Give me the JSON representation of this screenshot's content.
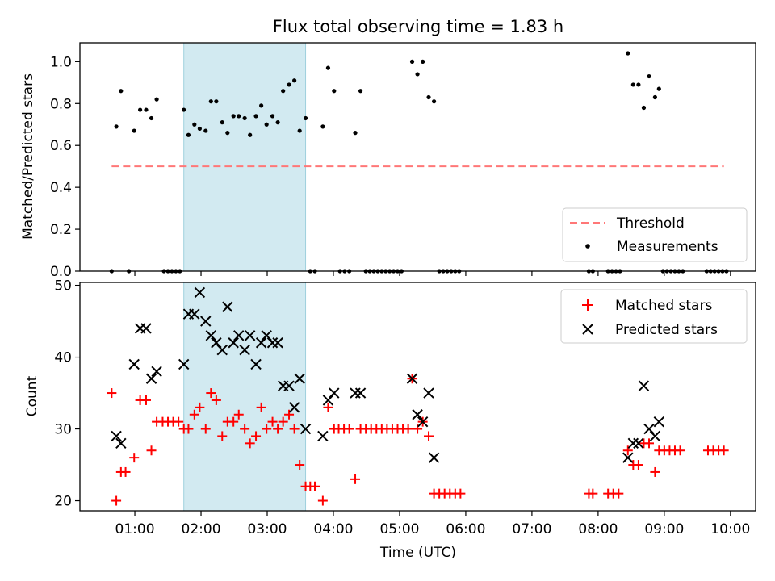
{
  "chart_data": [
    {
      "type": "scatter",
      "panel": "top",
      "title": "Flux total observing time = 1.83 h",
      "xlabel": "",
      "ylabel": "Matched/Predicted stars",
      "xlim": [
        0.17,
        10.38
      ],
      "ylim": [
        0,
        1.09
      ],
      "yticks": [
        0.0,
        0.2,
        0.4,
        0.6,
        0.8,
        1.0
      ],
      "ytick_labels": [
        "0.0",
        "0.2",
        "0.4",
        "0.6",
        "0.8",
        "1.0"
      ],
      "shaded_region": [
        1.74,
        3.58
      ],
      "threshold": {
        "name": "Threshold",
        "value": 0.5,
        "x_range": [
          0.65,
          9.9
        ],
        "color": "#ff7777"
      },
      "legend": {
        "position": "lower-right",
        "entries": [
          "Threshold",
          "Measurements"
        ]
      },
      "series": [
        {
          "name": "Measurements",
          "color": "#000000",
          "marker": "dot",
          "points": [
            [
              0.65,
              0.0
            ],
            [
              0.72,
              0.69
            ],
            [
              0.79,
              0.86
            ],
            [
              0.91,
              0.0
            ],
            [
              0.99,
              0.67
            ],
            [
              1.08,
              0.77
            ],
            [
              1.17,
              0.77
            ],
            [
              1.25,
              0.73
            ],
            [
              1.33,
              0.82
            ],
            [
              1.44,
              0.0
            ],
            [
              1.5,
              0.0
            ],
            [
              1.56,
              0.0
            ],
            [
              1.62,
              0.0
            ],
            [
              1.68,
              0.0
            ],
            [
              1.74,
              0.77
            ],
            [
              1.81,
              0.65
            ],
            [
              1.9,
              0.7
            ],
            [
              1.98,
              0.68
            ],
            [
              2.07,
              0.67
            ],
            [
              2.15,
              0.81
            ],
            [
              2.23,
              0.81
            ],
            [
              2.32,
              0.71
            ],
            [
              2.4,
              0.66
            ],
            [
              2.49,
              0.74
            ],
            [
              2.57,
              0.74
            ],
            [
              2.66,
              0.73
            ],
            [
              2.74,
              0.65
            ],
            [
              2.83,
              0.74
            ],
            [
              2.91,
              0.79
            ],
            [
              2.99,
              0.7
            ],
            [
              3.08,
              0.74
            ],
            [
              3.16,
              0.71
            ],
            [
              3.24,
              0.86
            ],
            [
              3.33,
              0.89
            ],
            [
              3.41,
              0.91
            ],
            [
              3.49,
              0.67
            ],
            [
              3.58,
              0.73
            ],
            [
              3.65,
              0.0
            ],
            [
              3.72,
              0.0
            ],
            [
              3.84,
              0.69
            ],
            [
              3.92,
              0.97
            ],
            [
              4.01,
              0.86
            ],
            [
              4.1,
              0.0
            ],
            [
              4.17,
              0.0
            ],
            [
              4.24,
              0.0
            ],
            [
              4.33,
              0.66
            ],
            [
              4.41,
              0.86
            ],
            [
              4.49,
              0.0
            ],
            [
              4.55,
              0.0
            ],
            [
              4.61,
              0.0
            ],
            [
              4.67,
              0.0
            ],
            [
              4.73,
              0.0
            ],
            [
              4.79,
              0.0
            ],
            [
              4.85,
              0.0
            ],
            [
              4.91,
              0.0
            ],
            [
              4.97,
              0.0
            ],
            [
              5.03,
              0.0
            ],
            [
              5.19,
              1.0
            ],
            [
              5.27,
              0.94
            ],
            [
              5.35,
              1.0
            ],
            [
              5.44,
              0.83
            ],
            [
              5.52,
              0.81
            ],
            [
              5.6,
              0.0
            ],
            [
              5.66,
              0.0
            ],
            [
              5.72,
              0.0
            ],
            [
              5.78,
              0.0
            ],
            [
              5.84,
              0.0
            ],
            [
              5.9,
              0.0
            ],
            [
              7.86,
              0.0
            ],
            [
              7.92,
              0.0
            ],
            [
              8.15,
              0.0
            ],
            [
              8.21,
              0.0
            ],
            [
              8.27,
              0.0
            ],
            [
              8.33,
              0.0
            ],
            [
              8.45,
              1.04
            ],
            [
              8.53,
              0.89
            ],
            [
              8.61,
              0.89
            ],
            [
              8.69,
              0.78
            ],
            [
              8.77,
              0.93
            ],
            [
              8.86,
              0.83
            ],
            [
              8.92,
              0.87
            ],
            [
              8.98,
              0.0
            ],
            [
              9.04,
              0.0
            ],
            [
              9.1,
              0.0
            ],
            [
              9.16,
              0.0
            ],
            [
              9.22,
              0.0
            ],
            [
              9.28,
              0.0
            ],
            [
              9.64,
              0.0
            ],
            [
              9.7,
              0.0
            ],
            [
              9.76,
              0.0
            ],
            [
              9.82,
              0.0
            ],
            [
              9.88,
              0.0
            ],
            [
              9.94,
              0.0
            ]
          ]
        }
      ]
    },
    {
      "type": "scatter",
      "panel": "bottom",
      "xlabel": "Time (UTC)",
      "ylabel": "Count",
      "xlim": [
        0.17,
        10.38
      ],
      "ylim": [
        18.6,
        50.4
      ],
      "xticks": [
        1,
        2,
        3,
        4,
        5,
        6,
        7,
        8,
        9,
        10
      ],
      "xtick_labels": [
        "01:00",
        "02:00",
        "03:00",
        "04:00",
        "05:00",
        "06:00",
        "07:00",
        "08:00",
        "09:00",
        "10:00"
      ],
      "yticks": [
        20,
        30,
        40,
        50
      ],
      "ytick_labels": [
        "20",
        "30",
        "40",
        "50"
      ],
      "shaded_region": [
        1.74,
        3.58
      ],
      "legend": {
        "position": "top-right",
        "entries": [
          "Matched stars",
          "Predicted stars"
        ]
      },
      "series": [
        {
          "name": "Matched stars",
          "color": "#ff0000",
          "marker": "plus",
          "points": [
            [
              0.65,
              35
            ],
            [
              0.72,
              20
            ],
            [
              0.79,
              24
            ],
            [
              0.86,
              24
            ],
            [
              0.99,
              26
            ],
            [
              1.08,
              34
            ],
            [
              1.17,
              34
            ],
            [
              1.25,
              27
            ],
            [
              1.33,
              31
            ],
            [
              1.42,
              31
            ],
            [
              1.5,
              31
            ],
            [
              1.58,
              31
            ],
            [
              1.66,
              31
            ],
            [
              1.74,
              30
            ],
            [
              1.81,
              30
            ],
            [
              1.9,
              32
            ],
            [
              1.98,
              33
            ],
            [
              2.07,
              30
            ],
            [
              2.15,
              35
            ],
            [
              2.23,
              34
            ],
            [
              2.32,
              29
            ],
            [
              2.4,
              31
            ],
            [
              2.49,
              31
            ],
            [
              2.57,
              32
            ],
            [
              2.66,
              30
            ],
            [
              2.74,
              28
            ],
            [
              2.83,
              29
            ],
            [
              2.91,
              33
            ],
            [
              2.99,
              30
            ],
            [
              3.08,
              31
            ],
            [
              3.16,
              30
            ],
            [
              3.24,
              31
            ],
            [
              3.33,
              32
            ],
            [
              3.41,
              30
            ],
            [
              3.49,
              25
            ],
            [
              3.58,
              22
            ],
            [
              3.65,
              22
            ],
            [
              3.72,
              22
            ],
            [
              3.84,
              20
            ],
            [
              3.92,
              33
            ],
            [
              4.01,
              30
            ],
            [
              4.08,
              30
            ],
            [
              4.16,
              30
            ],
            [
              4.24,
              30
            ],
            [
              4.33,
              23
            ],
            [
              4.41,
              30
            ],
            [
              4.49,
              30
            ],
            [
              4.57,
              30
            ],
            [
              4.65,
              30
            ],
            [
              4.73,
              30
            ],
            [
              4.81,
              30
            ],
            [
              4.89,
              30
            ],
            [
              4.97,
              30
            ],
            [
              5.05,
              30
            ],
            [
              5.13,
              30
            ],
            [
              5.19,
              37
            ],
            [
              5.27,
              30
            ],
            [
              5.35,
              31
            ],
            [
              5.44,
              29
            ],
            [
              5.52,
              21
            ],
            [
              5.6,
              21
            ],
            [
              5.68,
              21
            ],
            [
              5.76,
              21
            ],
            [
              5.84,
              21
            ],
            [
              5.92,
              21
            ],
            [
              7.86,
              21
            ],
            [
              7.92,
              21
            ],
            [
              8.15,
              21
            ],
            [
              8.23,
              21
            ],
            [
              8.31,
              21
            ],
            [
              8.45,
              27
            ],
            [
              8.53,
              25
            ],
            [
              8.61,
              25
            ],
            [
              8.69,
              28
            ],
            [
              8.77,
              28
            ],
            [
              8.86,
              24
            ],
            [
              8.92,
              27
            ],
            [
              9.0,
              27
            ],
            [
              9.08,
              27
            ],
            [
              9.16,
              27
            ],
            [
              9.24,
              27
            ],
            [
              9.66,
              27
            ],
            [
              9.74,
              27
            ],
            [
              9.82,
              27
            ],
            [
              9.9,
              27
            ]
          ]
        },
        {
          "name": "Predicted stars",
          "color": "#000000",
          "marker": "x",
          "points": [
            [
              0.72,
              29
            ],
            [
              0.79,
              28
            ],
            [
              0.99,
              39
            ],
            [
              1.08,
              44
            ],
            [
              1.17,
              44
            ],
            [
              1.25,
              37
            ],
            [
              1.33,
              38
            ],
            [
              1.74,
              39
            ],
            [
              1.81,
              46
            ],
            [
              1.9,
              46
            ],
            [
              1.98,
              49
            ],
            [
              2.07,
              45
            ],
            [
              2.15,
              43
            ],
            [
              2.23,
              42
            ],
            [
              2.32,
              41
            ],
            [
              2.4,
              47
            ],
            [
              2.49,
              42
            ],
            [
              2.57,
              43
            ],
            [
              2.66,
              41
            ],
            [
              2.74,
              43
            ],
            [
              2.83,
              39
            ],
            [
              2.91,
              42
            ],
            [
              2.99,
              43
            ],
            [
              3.08,
              42
            ],
            [
              3.16,
              42
            ],
            [
              3.24,
              36
            ],
            [
              3.33,
              36
            ],
            [
              3.41,
              33
            ],
            [
              3.49,
              37
            ],
            [
              3.58,
              30
            ],
            [
              3.84,
              29
            ],
            [
              3.92,
              34
            ],
            [
              4.01,
              35
            ],
            [
              4.33,
              35
            ],
            [
              4.41,
              35
            ],
            [
              5.19,
              37
            ],
            [
              5.27,
              32
            ],
            [
              5.35,
              31
            ],
            [
              5.44,
              35
            ],
            [
              5.52,
              26
            ],
            [
              8.45,
              26
            ],
            [
              8.53,
              28
            ],
            [
              8.61,
              28
            ],
            [
              8.69,
              36
            ],
            [
              8.77,
              30
            ],
            [
              8.86,
              29
            ],
            [
              8.92,
              31
            ]
          ]
        }
      ]
    }
  ]
}
